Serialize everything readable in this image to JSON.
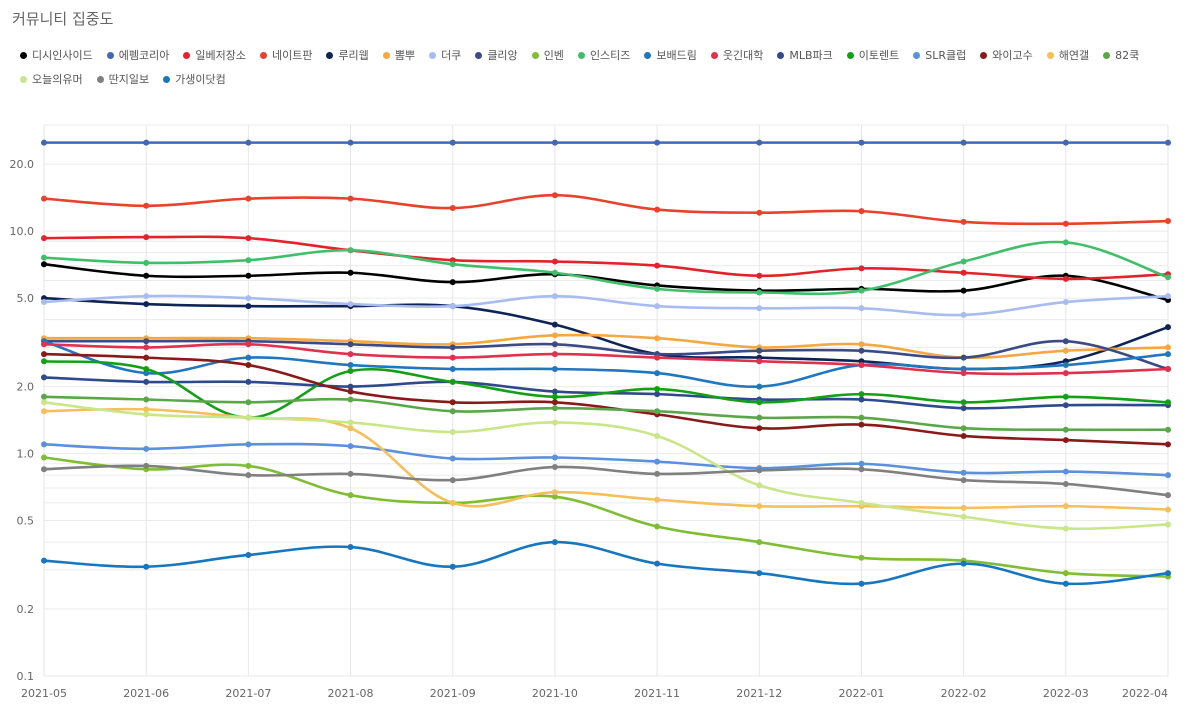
{
  "page_title": "커뮤니티 집중도",
  "chart_data": {
    "type": "line",
    "title": "커뮤니티 집중도",
    "y_scale": "log",
    "ylim": [
      0.1,
      30
    ],
    "y_ticks": [
      0.1,
      0.2,
      0.5,
      1.0,
      2.0,
      5.0,
      10.0,
      20.0
    ],
    "y_tick_labels": [
      "0.1",
      "0.2",
      "0.5",
      "1.0",
      "2.0",
      "5.0",
      "10.0",
      "20.0"
    ],
    "grid": true,
    "legend_position": "top",
    "x": [
      "2021-05",
      "2021-06",
      "2021-07",
      "2021-08",
      "2021-09",
      "2021-10",
      "2021-11",
      "2021-12",
      "2022-01",
      "2022-02",
      "2022-03",
      "2022-04"
    ],
    "series": [
      {
        "name": "디시인사이드",
        "color": "#000000",
        "values": [
          7.1,
          6.3,
          6.3,
          6.5,
          5.9,
          6.4,
          5.7,
          5.4,
          5.5,
          5.4,
          6.3,
          4.9
        ]
      },
      {
        "name": "에펨코리아",
        "color": "#4268b5",
        "values": [
          25,
          25,
          25,
          25,
          25,
          25,
          25,
          25,
          25,
          25,
          25,
          25
        ]
      },
      {
        "name": "일베저장소",
        "color": "#e2232b",
        "values": [
          9.3,
          9.4,
          9.3,
          8.2,
          7.4,
          7.3,
          7.0,
          6.3,
          6.8,
          6.5,
          6.1,
          6.4
        ]
      },
      {
        "name": "네이트판",
        "color": "#e8422d",
        "values": [
          14.0,
          13.0,
          14.0,
          14.0,
          12.7,
          14.5,
          12.5,
          12.1,
          12.3,
          11.0,
          10.8,
          11.1
        ]
      },
      {
        "name": "루리웹",
        "color": "#0f2456",
        "values": [
          5.0,
          4.7,
          4.6,
          4.6,
          4.6,
          3.8,
          2.8,
          2.7,
          2.6,
          2.4,
          2.6,
          3.7
        ]
      },
      {
        "name": "뽐뿌",
        "color": "#f5a742",
        "values": [
          3.3,
          3.3,
          3.3,
          3.2,
          3.1,
          3.4,
          3.3,
          3.0,
          3.1,
          2.7,
          2.9,
          3.0
        ]
      },
      {
        "name": "더쿠",
        "color": "#a9bcf0",
        "values": [
          4.8,
          5.1,
          5.0,
          4.7,
          4.6,
          5.1,
          4.6,
          4.5,
          4.5,
          4.2,
          4.8,
          5.1
        ]
      },
      {
        "name": "클리앙",
        "color": "#3c4a85",
        "values": [
          3.2,
          3.2,
          3.2,
          3.1,
          3.0,
          3.1,
          2.8,
          2.9,
          2.9,
          2.7,
          3.2,
          2.4
        ]
      },
      {
        "name": "인벤",
        "color": "#7fbd34",
        "values": [
          0.96,
          0.85,
          0.88,
          0.65,
          0.6,
          0.64,
          0.47,
          0.4,
          0.34,
          0.33,
          0.29,
          0.28
        ]
      },
      {
        "name": "인스티즈",
        "color": "#3fbf6a",
        "values": [
          7.6,
          7.2,
          7.4,
          8.2,
          7.1,
          6.5,
          5.5,
          5.3,
          5.4,
          7.3,
          8.9,
          6.2
        ]
      },
      {
        "name": "보배드림",
        "color": "#2176c0",
        "values": [
          3.2,
          2.3,
          2.7,
          2.5,
          2.4,
          2.4,
          2.3,
          2.0,
          2.5,
          2.4,
          2.5,
          2.8
        ]
      },
      {
        "name": "웃긴대학",
        "color": "#e0314e",
        "values": [
          3.1,
          3.0,
          3.1,
          2.8,
          2.7,
          2.8,
          2.7,
          2.6,
          2.5,
          2.3,
          2.3,
          2.4
        ]
      },
      {
        "name": "MLB파크",
        "color": "#2f4a8c",
        "values": [
          2.2,
          2.1,
          2.1,
          2.0,
          2.1,
          1.9,
          1.85,
          1.75,
          1.75,
          1.6,
          1.65,
          1.65
        ]
      },
      {
        "name": "이토렌트",
        "color": "#13a016",
        "values": [
          2.6,
          2.4,
          1.45,
          2.35,
          2.1,
          1.8,
          1.95,
          1.7,
          1.85,
          1.7,
          1.8,
          1.7
        ]
      },
      {
        "name": "SLR클럽",
        "color": "#5b90dc",
        "values": [
          1.1,
          1.05,
          1.1,
          1.08,
          0.95,
          0.96,
          0.92,
          0.86,
          0.9,
          0.82,
          0.83,
          0.8
        ]
      },
      {
        "name": "와이고수",
        "color": "#8a1a1a",
        "values": [
          2.8,
          2.7,
          2.5,
          1.9,
          1.7,
          1.7,
          1.5,
          1.3,
          1.35,
          1.2,
          1.15,
          1.1
        ]
      },
      {
        "name": "해연갤",
        "color": "#f5bf5a",
        "values": [
          1.55,
          1.58,
          1.45,
          1.3,
          0.6,
          0.67,
          0.62,
          0.58,
          0.58,
          0.57,
          0.58,
          0.56
        ]
      },
      {
        "name": "82쿡",
        "color": "#5aa74a",
        "values": [
          1.8,
          1.75,
          1.7,
          1.75,
          1.55,
          1.6,
          1.55,
          1.45,
          1.45,
          1.3,
          1.28,
          1.28
        ]
      },
      {
        "name": "오늘의유머",
        "color": "#c9e688",
        "values": [
          1.7,
          1.5,
          1.45,
          1.38,
          1.25,
          1.38,
          1.2,
          0.72,
          0.6,
          0.52,
          0.46,
          0.48
        ]
      },
      {
        "name": "딴지일보",
        "color": "#808080",
        "values": [
          0.85,
          0.88,
          0.8,
          0.81,
          0.76,
          0.87,
          0.81,
          0.84,
          0.85,
          0.76,
          0.73,
          0.65
        ]
      },
      {
        "name": "가생이닷컴",
        "color": "#1676c0",
        "values": [
          0.33,
          0.31,
          0.35,
          0.38,
          0.31,
          0.4,
          0.32,
          0.29,
          0.26,
          0.32,
          0.26,
          0.29
        ]
      }
    ]
  }
}
